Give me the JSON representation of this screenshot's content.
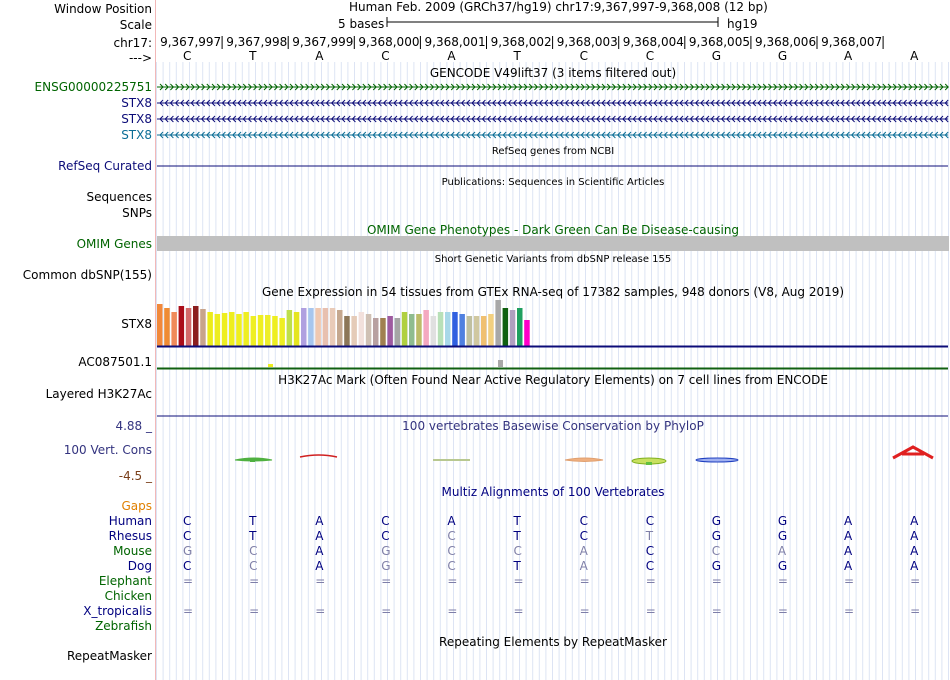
{
  "colors": {
    "ensg": "#006400",
    "stx8_dark": "#0c0c78",
    "stx8_light": "#0c6e96",
    "refseq": "#0c0c78",
    "omim": "#006400",
    "cons": "#33337f",
    "gaps": "#e08000",
    "human": "#000080",
    "mouse_green": "#006400"
  },
  "header": {
    "window_position_label": "Window Position",
    "scale_label": "Scale",
    "chrom_label": "chr17:",
    "arrow_label": "--->",
    "title": "Human Feb. 2009 (GRCh37/hg19)   chr17:9,367,997-9,368,008 (12 bp)",
    "scale_text": "5 bases",
    "assembly": "hg19",
    "positions": [
      "9,367,997",
      "9,367,998",
      "9,367,999",
      "9,368,000",
      "9,368,001",
      "9,368,002",
      "9,368,003",
      "9,368,004",
      "9,368,005",
      "9,368,006",
      "9,368,007"
    ],
    "bases": [
      "C",
      "T",
      "A",
      "C",
      "A",
      "T",
      "C",
      "C",
      "G",
      "G",
      "A",
      "A"
    ]
  },
  "gencode": {
    "title": "GENCODE V49lift37 (3 items filtered out)",
    "tracks": [
      {
        "label": "ENSG00000225751",
        "strand": "+",
        "color": "#006400"
      },
      {
        "label": "STX8",
        "strand": "-",
        "color": "#0c0c78"
      },
      {
        "label": "STX8",
        "strand": "-",
        "color": "#0c0c78"
      },
      {
        "label": "STX8",
        "strand": "-",
        "color": "#0c6e96"
      }
    ]
  },
  "refseq": {
    "title": "RefSeq genes from NCBI",
    "label": "RefSeq Curated"
  },
  "publications": {
    "title": "Publications: Sequences in Scientific Articles",
    "label1": "Sequences",
    "label2": "SNPs"
  },
  "omim": {
    "title": "OMIM Gene Phenotypes - Dark Green Can Be Disease-causing",
    "label": "OMIM Genes"
  },
  "dbsnp": {
    "title": "Short Genetic Variants from dbSNP release 155",
    "label": "Common dbSNP(155)"
  },
  "gtex": {
    "title": "Gene Expression in 54 tissues from GTEx RNA-seq of 17382 samples, 948 donors (V8, Aug 2019)",
    "label": "STX8",
    "label2": "AC087501.1"
  },
  "h3k27ac": {
    "title": "H3K27Ac Mark (Often Found Near Active Regulatory Elements) on 7 cell lines from ENCODE",
    "label": "Layered H3K27Ac"
  },
  "phylop": {
    "title": "100 vertebrates Basewise Conservation by PhyloP",
    "label": "100 Vert. Cons",
    "max": "4.88 _",
    "min": "-4.5 _"
  },
  "multiz": {
    "title": "Multiz Alignments of 100 Vertebrates",
    "gaps_label": "Gaps",
    "species": [
      {
        "name": "Human",
        "color": "#000080",
        "row": [
          "C",
          "T",
          "A",
          "C",
          "A",
          "T",
          "C",
          "C",
          "G",
          "G",
          "A",
          "A"
        ]
      },
      {
        "name": "Rhesus",
        "color": "#000080",
        "row": [
          "C",
          "T",
          "A",
          "C",
          "C",
          "T",
          "C",
          "T",
          "G",
          "G",
          "A",
          "A"
        ]
      },
      {
        "name": "Mouse",
        "color": "#006400",
        "row": [
          "G",
          "C",
          "A",
          "G",
          "C",
          "C",
          "A",
          "C",
          "C",
          "A",
          "A",
          "A"
        ]
      },
      {
        "name": "Dog",
        "color": "#000080",
        "row": [
          "C",
          "C",
          "A",
          "G",
          "C",
          "T",
          "A",
          "C",
          "G",
          "G",
          "A",
          "A"
        ]
      },
      {
        "name": "Elephant",
        "color": "#006400",
        "row": [
          "=",
          "=",
          "=",
          "=",
          "=",
          "=",
          "=",
          "=",
          "=",
          "=",
          "=",
          "="
        ]
      },
      {
        "name": "Chicken",
        "color": "#006400",
        "row": []
      },
      {
        "name": "X_tropicalis",
        "color": "#000080",
        "row": [
          "=",
          "=",
          "=",
          "=",
          "=",
          "=",
          "=",
          "=",
          "=",
          "=",
          "=",
          "="
        ]
      },
      {
        "name": "Zebrafish",
        "color": "#006400",
        "row": []
      }
    ]
  },
  "repeatmasker": {
    "title": "Repeating Elements by RepeatMasker",
    "label": "RepeatMasker"
  }
}
